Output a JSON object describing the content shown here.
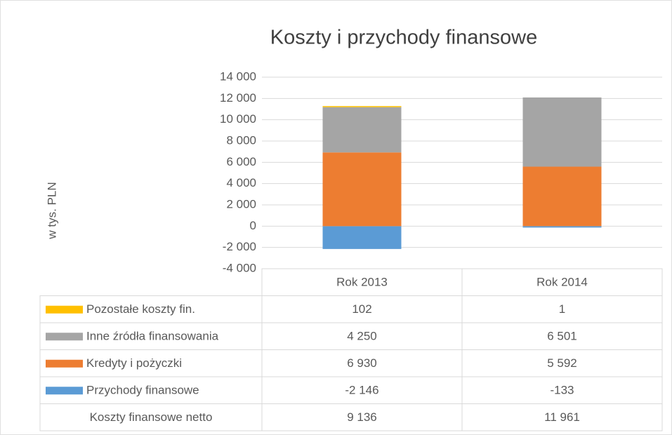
{
  "chart_data": {
    "type": "bar",
    "stacked": true,
    "title": "Koszty i przychody finansowe",
    "y_label": "w tys. PLN",
    "categories": [
      "Rok 2013",
      "Rok 2014"
    ],
    "series": [
      {
        "name": "Pozostałe koszty fin.",
        "color": "#ffc000",
        "values": [
          102,
          1
        ],
        "value_labels": [
          "102",
          "1"
        ]
      },
      {
        "name": "Inne źródła finansowania",
        "color": "#a5a5a5",
        "values": [
          4250,
          6501
        ],
        "value_labels": [
          "4 250",
          "6 501"
        ]
      },
      {
        "name": "Kredyty i pożyczki",
        "color": "#ed7d31",
        "values": [
          6930,
          5592
        ],
        "value_labels": [
          "6 930",
          "5 592"
        ]
      },
      {
        "name": "Przychody finansowe",
        "color": "#5b9bd5",
        "values": [
          -2146,
          -133
        ],
        "value_labels": [
          "-2 146",
          "-133"
        ]
      }
    ],
    "totals": {
      "name": "Koszty finansowe netto",
      "values": [
        9136,
        11961
      ],
      "value_labels": [
        "9 136",
        "11 961"
      ]
    },
    "ylim": [
      -4000,
      14000
    ],
    "yticks": [
      {
        "value": -4000,
        "label": "-4 000"
      },
      {
        "value": -2000,
        "label": "-2 000"
      },
      0,
      {
        "value": 2000,
        "label": "2 000"
      },
      {
        "value": 4000,
        "label": "4 000"
      },
      {
        "value": 6000,
        "label": "6 000"
      },
      {
        "value": 8000,
        "label": "8 000"
      },
      {
        "value": 10000,
        "label": "10 000"
      },
      {
        "value": 12000,
        "label": "12 000"
      },
      {
        "value": 14000,
        "label": "14 000"
      }
    ],
    "grid": true,
    "data_table": true
  }
}
